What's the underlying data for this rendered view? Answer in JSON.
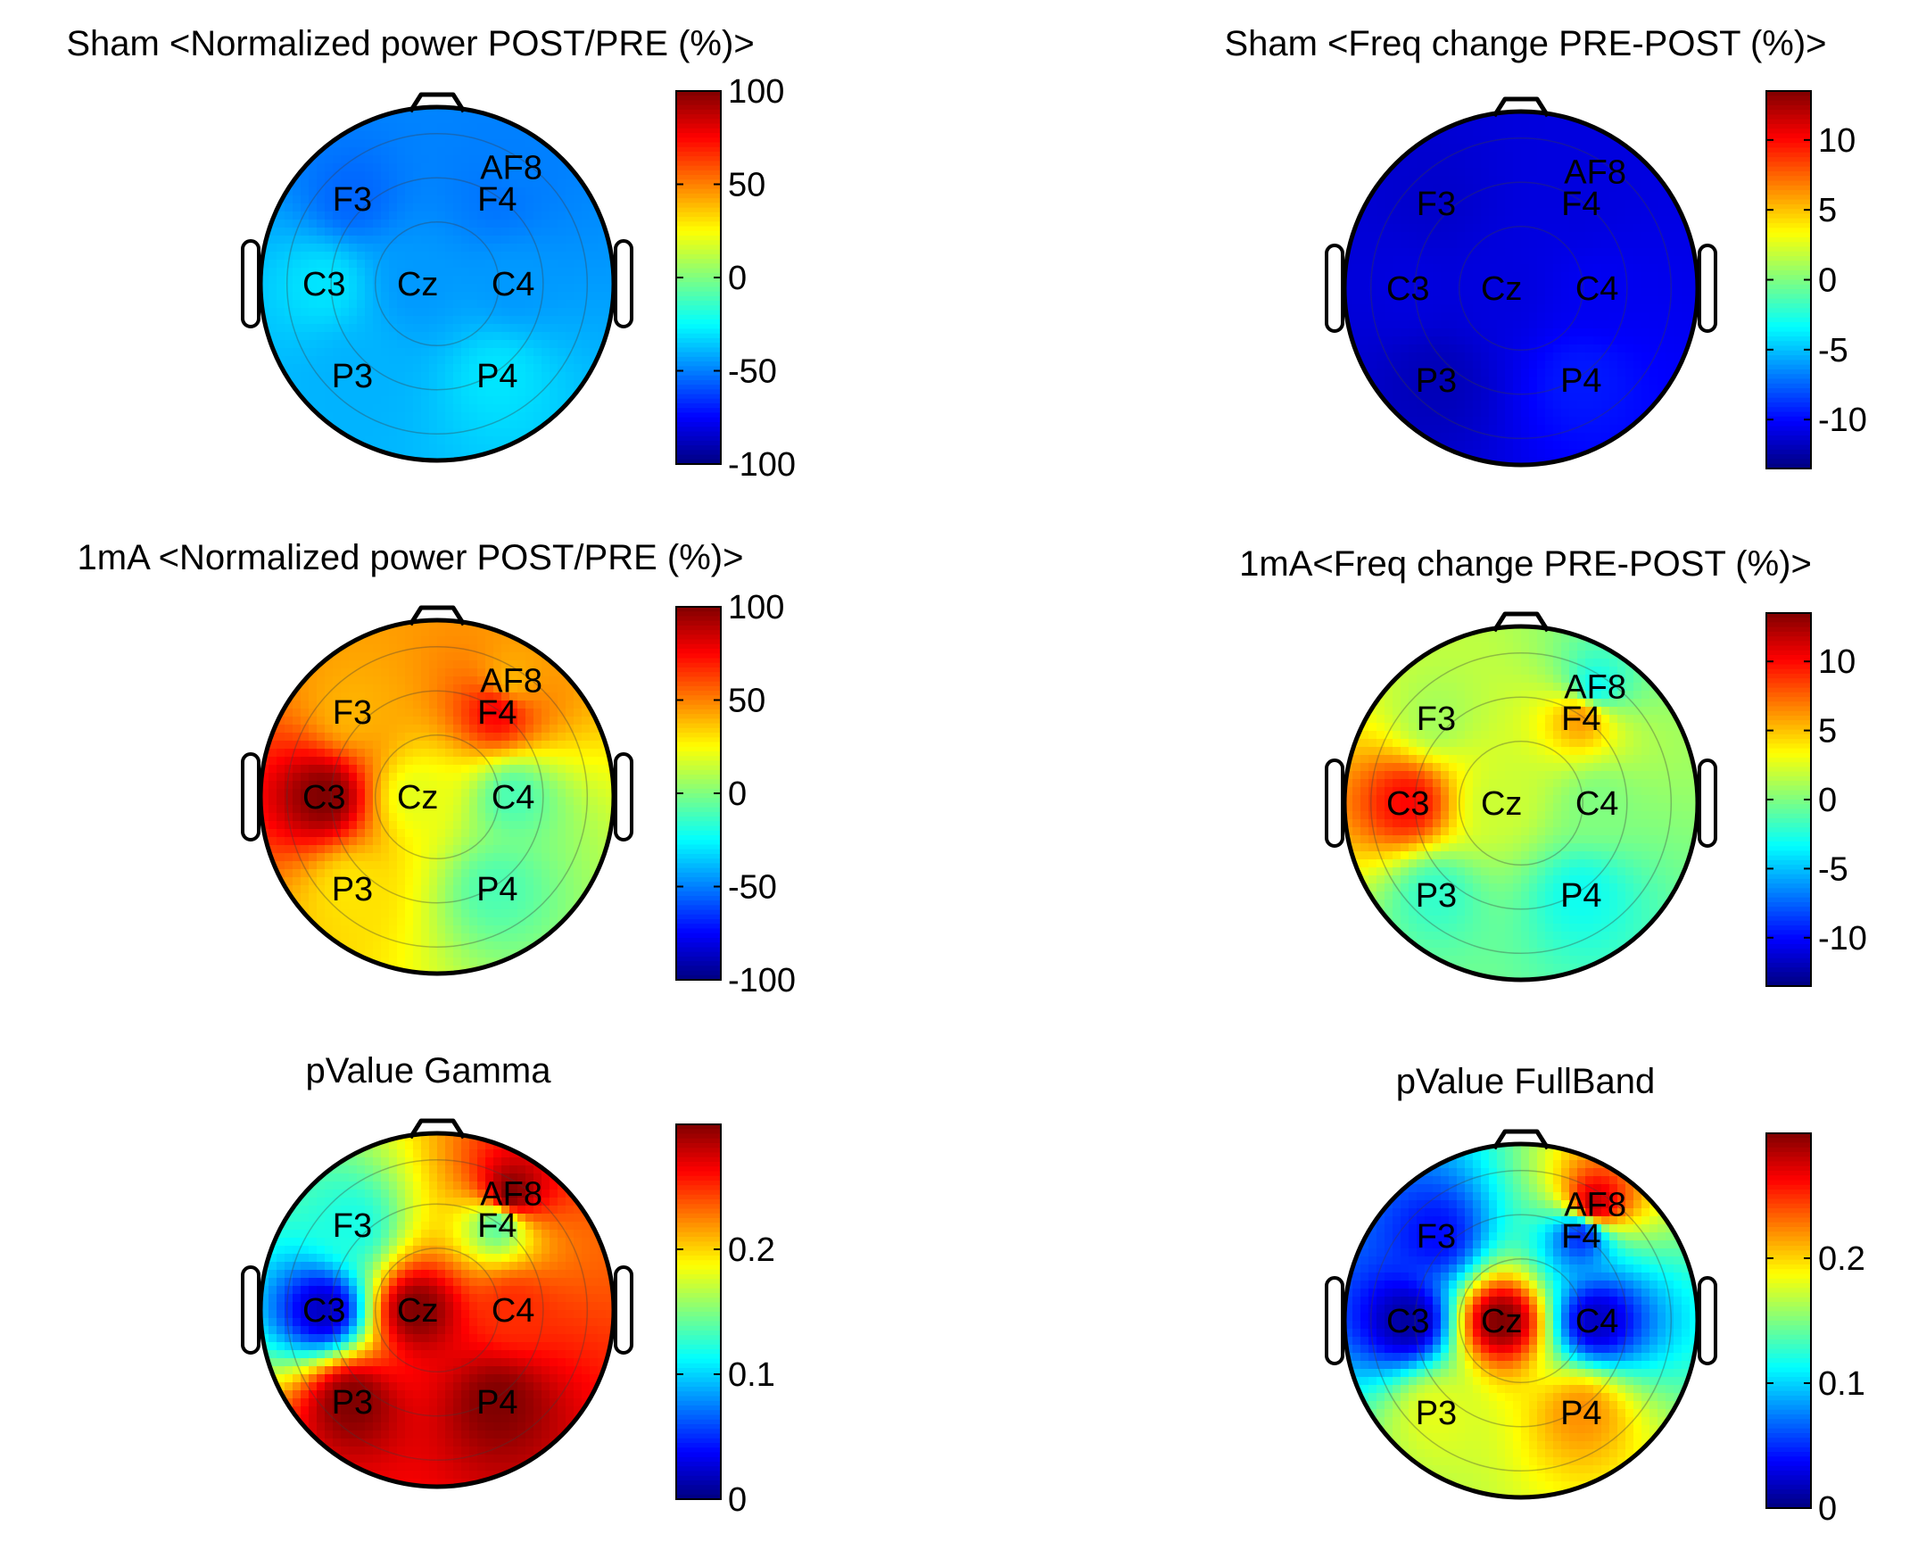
{
  "chart_data": [
    {
      "type": "heatmap",
      "title": "Sham <Normalized power POST/PRE (%)>",
      "electrodes": [
        {
          "label": "AF8",
          "value": -50
        },
        {
          "label": "F3",
          "value": -55
        },
        {
          "label": "F4",
          "value": -52
        },
        {
          "label": "C3",
          "value": -30
        },
        {
          "label": "Cz",
          "value": -45
        },
        {
          "label": "C4",
          "value": -45
        },
        {
          "label": "P3",
          "value": -40
        },
        {
          "label": "P4",
          "value": -30
        }
      ],
      "colorbar": {
        "range": [
          -100,
          100
        ],
        "ticks": [
          100,
          50,
          0,
          -50,
          -100
        ],
        "tick_labels": [
          "100",
          "50",
          "0",
          "-50",
          "-100"
        ]
      }
    },
    {
      "type": "heatmap",
      "title": "Sham <Freq change PRE-POST (%)>",
      "electrodes": [
        {
          "label": "AF8",
          "value": -11
        },
        {
          "label": "F3",
          "value": -11.5
        },
        {
          "label": "F4",
          "value": -11
        },
        {
          "label": "C3",
          "value": -11
        },
        {
          "label": "Cz",
          "value": -11
        },
        {
          "label": "C4",
          "value": -10.5
        },
        {
          "label": "P3",
          "value": -12
        },
        {
          "label": "P4",
          "value": -9.5
        }
      ],
      "colorbar": {
        "range": [
          -13.5,
          13.5
        ],
        "ticks": [
          10,
          5,
          0,
          -5,
          -10
        ],
        "tick_labels": [
          "10",
          "5",
          "0",
          "-5",
          "-10"
        ]
      }
    },
    {
      "type": "heatmap",
      "title": "1mA <Normalized power POST/PRE (%)>",
      "electrodes": [
        {
          "label": "AF8",
          "value": 40
        },
        {
          "label": "F3",
          "value": 40
        },
        {
          "label": "F4",
          "value": 75
        },
        {
          "label": "C3",
          "value": 100
        },
        {
          "label": "Cz",
          "value": 20
        },
        {
          "label": "C4",
          "value": -10
        },
        {
          "label": "P3",
          "value": 30
        },
        {
          "label": "P4",
          "value": -10
        }
      ],
      "colorbar": {
        "range": [
          -100,
          100
        ],
        "ticks": [
          100,
          50,
          0,
          -50,
          -100
        ],
        "tick_labels": [
          "100",
          "50",
          "0",
          "-50",
          "-100"
        ]
      }
    },
    {
      "type": "heatmap",
      "title": "1mA<Freq change PRE-POST (%)>",
      "electrodes": [
        {
          "label": "AF8",
          "value": -3
        },
        {
          "label": "F3",
          "value": 1
        },
        {
          "label": "F4",
          "value": 6
        },
        {
          "label": "C3",
          "value": 10
        },
        {
          "label": "Cz",
          "value": 2
        },
        {
          "label": "C4",
          "value": 0
        },
        {
          "label": "P3",
          "value": -2
        },
        {
          "label": "P4",
          "value": -3
        }
      ],
      "colorbar": {
        "range": [
          -13.5,
          13.5
        ],
        "ticks": [
          10,
          5,
          0,
          -5,
          -10
        ],
        "tick_labels": [
          "10",
          "5",
          "0",
          "-5",
          "-10"
        ]
      }
    },
    {
      "type": "heatmap",
      "title": "pValue Gamma",
      "electrodes": [
        {
          "label": "AF8",
          "value": 0.3
        },
        {
          "label": "F3",
          "value": 0.12
        },
        {
          "label": "F4",
          "value": 0.14
        },
        {
          "label": "C3",
          "value": 0.02
        },
        {
          "label": "Cz",
          "value": 0.3
        },
        {
          "label": "C4",
          "value": 0.25
        },
        {
          "label": "P3",
          "value": 0.3
        },
        {
          "label": "P4",
          "value": 0.3
        }
      ],
      "colorbar": {
        "range": [
          0,
          0.3
        ],
        "ticks": [
          0.2,
          0.1,
          0
        ],
        "tick_labels": [
          "0.2",
          "0.1",
          "0"
        ]
      }
    },
    {
      "type": "heatmap",
      "title": "pValue FullBand",
      "electrodes": [
        {
          "label": "AF8",
          "value": 0.28
        },
        {
          "label": "F3",
          "value": 0.04
        },
        {
          "label": "F4",
          "value": 0.05
        },
        {
          "label": "C3",
          "value": 0.01
        },
        {
          "label": "Cz",
          "value": 0.3
        },
        {
          "label": "C4",
          "value": 0.02
        },
        {
          "label": "P3",
          "value": 0.18
        },
        {
          "label": "P4",
          "value": 0.22
        }
      ],
      "colorbar": {
        "range": [
          0,
          0.3
        ],
        "ticks": [
          0.2,
          0.1,
          0
        ],
        "tick_labels": [
          "0.2",
          "0.1",
          "0"
        ]
      }
    }
  ]
}
